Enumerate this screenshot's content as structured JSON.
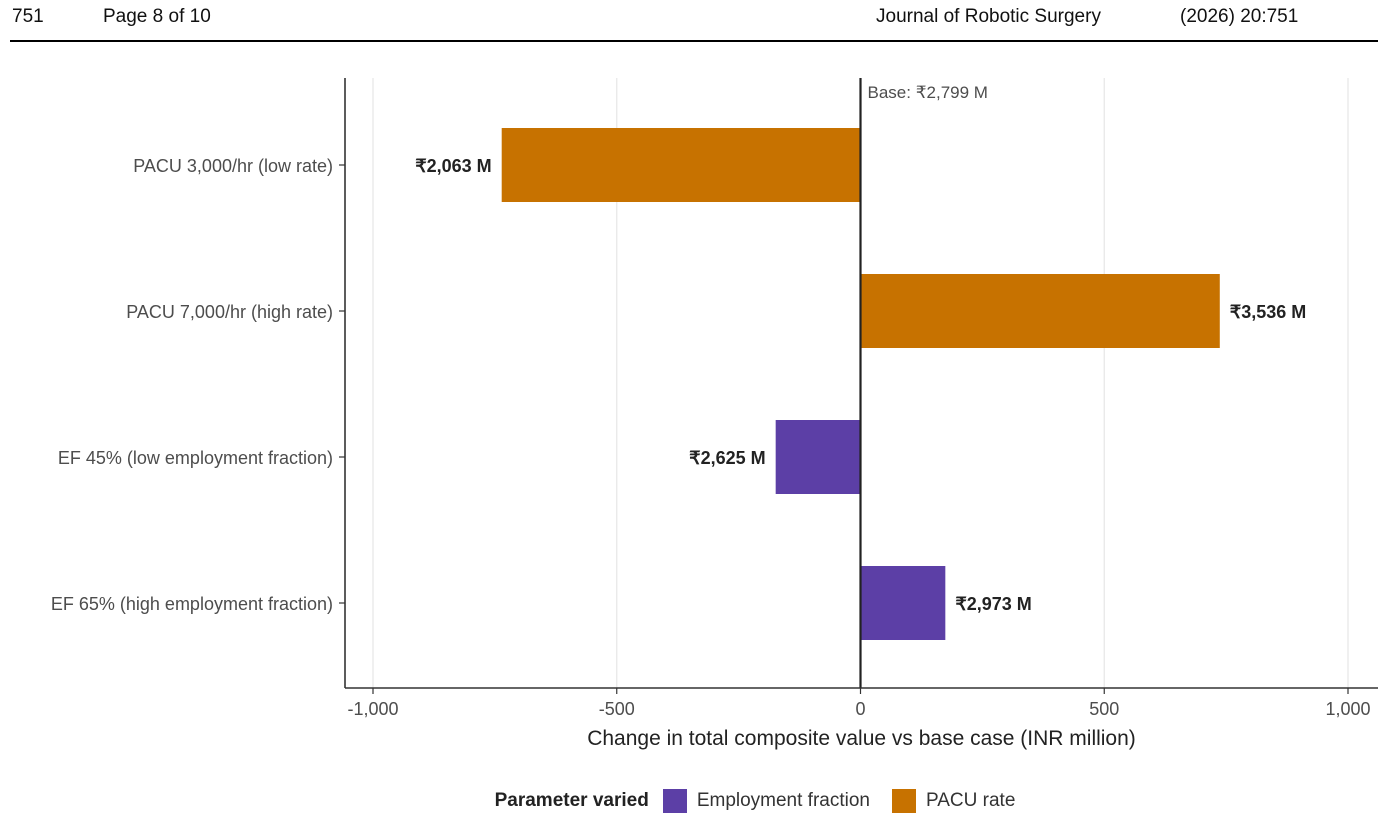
{
  "header": {
    "page_number": "751",
    "page_of": "Page 8 of 10",
    "journal": "Journal of Robotic Surgery",
    "citation": "(2026) 20:751"
  },
  "chart_data": {
    "type": "bar",
    "orientation": "horizontal",
    "title": "",
    "xlabel": "Change in total composite value vs base case (INR million)",
    "ylabel": "",
    "xlim": [
      -1000,
      1000
    ],
    "xticks": [
      -1000,
      -500,
      0,
      500,
      1000
    ],
    "xtick_labels": [
      "-1,000",
      "-500",
      "0",
      "500",
      "1,000"
    ],
    "grid": "vertical major gridlines",
    "base_annotation": "Base: ₹2,799 M",
    "categories": [
      "PACU 3,000/hr (low rate)",
      "PACU 7,000/hr (high rate)",
      "EF 45% (low employment fraction)",
      "EF 65% (high employment fraction)"
    ],
    "values": [
      -736,
      737,
      -174,
      174
    ],
    "value_labels": [
      "₹2,063 M",
      "₹3,536 M",
      "₹2,625 M",
      "₹2,973 M"
    ],
    "groups": [
      "PACU rate",
      "PACU rate",
      "Employment fraction",
      "Employment fraction"
    ],
    "legend": {
      "title": "Parameter varied",
      "placement": "bottom",
      "items": [
        {
          "name": "Employment fraction",
          "color": "#5c3fa6"
        },
        {
          "name": "PACU rate",
          "color": "#c77200"
        }
      ]
    }
  }
}
